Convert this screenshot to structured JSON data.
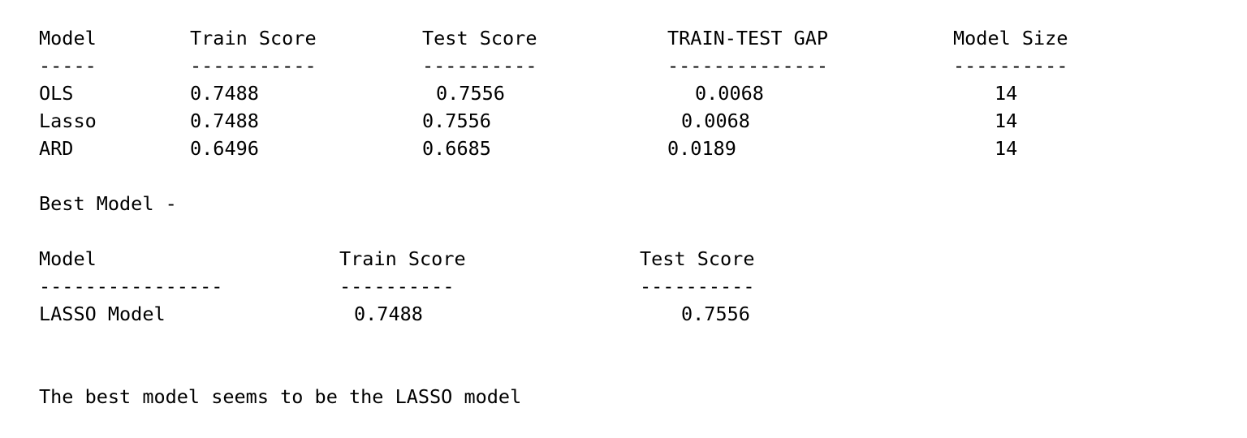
{
  "table1": {
    "headers": [
      "Model",
      "Train Score",
      "Test Score",
      "TRAIN-TEST GAP",
      "Model Size"
    ],
    "dashes": [
      "-----",
      "-----------",
      "----------",
      "--------------",
      "----------"
    ],
    "rows": [
      [
        "OLS",
        "0.7488",
        "0.7556",
        "0.0068",
        "14"
      ],
      [
        "Lasso",
        "0.7488",
        "0.7556",
        "0.0068",
        "14"
      ],
      [
        "ARD",
        "0.6496",
        "0.6685",
        "0.0189",
        "14"
      ]
    ]
  },
  "best_model_label": "Best Model -",
  "table2": {
    "headers": [
      "Model",
      "Train Score",
      "Test Score"
    ],
    "dashes": [
      "----------------",
      "----------",
      "----------"
    ],
    "rows": [
      [
        "LASSO Model",
        "0.7488",
        "0.7556"
      ]
    ]
  },
  "conclusion": "The best model seems to be the LASSO model"
}
